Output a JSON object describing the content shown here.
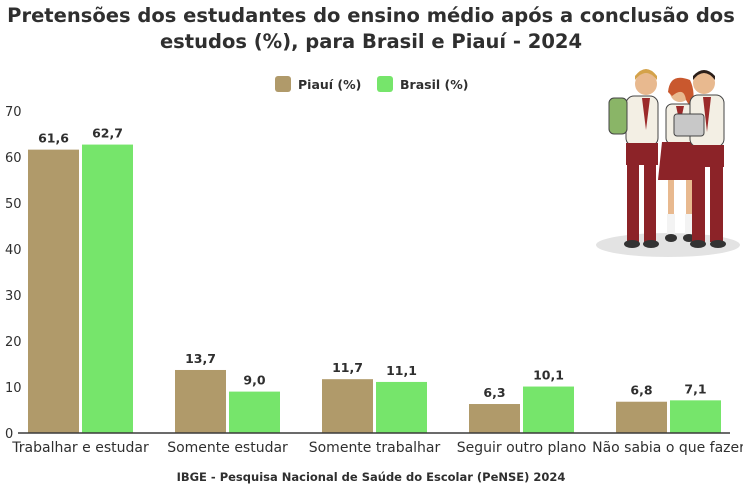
{
  "colors": {
    "piaui": "#b09a6a",
    "brasil": "#76e56b",
    "axis": "#3a3a3a"
  },
  "chart_data": {
    "type": "bar",
    "title_line1": "Pretensões dos estudantes do ensino médio após a conclusão dos",
    "title_line2": "estudos (%), para Brasil e Piauí - 2024",
    "categories": [
      "Trabalhar e estudar",
      "Somente estudar",
      "Somente trabalhar",
      "Seguir outro plano",
      "Não sabia o que fazer"
    ],
    "series": [
      {
        "name": "Piauí (%)",
        "values": [
          61.6,
          13.7,
          11.7,
          6.3,
          6.8
        ],
        "labels": [
          "61,6",
          "13,7",
          "11,7",
          "6,3",
          "6,8"
        ]
      },
      {
        "name": "Brasil (%)",
        "values": [
          62.7,
          9.0,
          11.1,
          10.1,
          7.1
        ],
        "labels": [
          "62,7",
          "9,0",
          "11,1",
          "10,1",
          "7,1"
        ]
      }
    ],
    "yticks": [
      "0",
      "10",
      "20",
      "30",
      "40",
      "50",
      "60",
      "70"
    ],
    "ylim": [
      0,
      70
    ],
    "grid": false,
    "legend_position": "top-center",
    "source": "IBGE - Pesquisa Nacional de Saúde do Escolar (PeNSE) 2024"
  }
}
